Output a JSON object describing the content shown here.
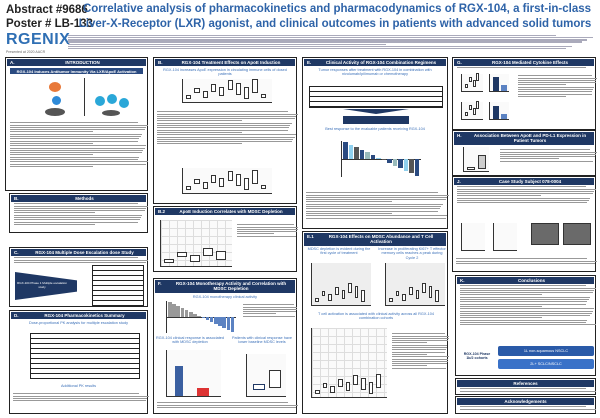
{
  "header": {
    "abstract": "Abstract #9686",
    "poster": "Poster # LB-133",
    "logo": "RGENIX",
    "presented": "Presented at 2020 AACR",
    "title_line1": "Correlative analysis of pharmacokinetics and pharmacodynamics of RGX-104, a first-in-class",
    "title_line2": "Liver-X-Receptor (LXR) agonist, and clinical outcomes in patients with advanced solid tumors"
  },
  "panels": {
    "intro": {
      "letter": "A.",
      "title": "INTRODUCTION",
      "subtitle": "RGX-104 Induces Antitumor Immunity Via LXR/ApoE Activation"
    },
    "methods": {
      "letter": "B.",
      "title": "Methods"
    },
    "dose": {
      "letter": "C.",
      "title": "RGX-104 Multiple Dose Escalation dose Study",
      "funnel": "RGX-104 Phase 1 Multiple escalation study"
    },
    "pk": {
      "letter": "D.",
      "title": "RGX-104 Pharmacokinetics Summary",
      "subtitle": "Dose-proportional PK analysis for multiple escalation study",
      "additional": "Additional PK results"
    },
    "apoe": {
      "letter": "B.",
      "title": "RGX-104 Treatment Effects on ApoE Induction",
      "subtitle": "RGX-104 increases ApoE expression in circulating immune cells of dosed patients"
    },
    "apoe_mdsc": {
      "letter": "B.2",
      "title": "ApoE Induction Correlates with MDSC Depletion"
    },
    "mono": {
      "letter": "F.",
      "title": "RGX-104 Monotherapy Activity and Correlation with MDSC Depletion",
      "subtitle": "RGX-104 monotherapy clinical activity",
      "left_sub": "RGX-104 clinical response is associated with MDSC depletion",
      "right_sub": "Patients with clinical response have lower baseline MDSC levels"
    },
    "clinical": {
      "letter": "E.",
      "title": "Clinical Activity of RGX-104 Combination Regimens",
      "subtitle": "Tumor responses after treatment with RGX-104 in combination with nivolumab/ipilimumab or chemotherapy",
      "chart_title": "Best response to the evaluable patients receiving RGX-104"
    },
    "tcell": {
      "letter": "E.1",
      "title": "RGX-104 Effects on MDSC Abundance and T Cell Activation",
      "sub1": "MDSC depletion is evident during the first cycle of treatment",
      "sub2": "Increase in proliferating KI67+ T effector memory cells reaches a peak during Cycle 2",
      "sub3": "T cell activation is associated with clinical activity across all RGX-104 combination cohorts"
    },
    "cytokine": {
      "letter": "G.",
      "title": "RGX-104 Mediated Cytokine Effects"
    },
    "pdl1": {
      "letter": "H.",
      "title": "Association Between ApoE and PD-L1 Expression in Patient Tumors"
    },
    "case": {
      "letter": "J.",
      "title": "Case Study Subject 078-0004"
    },
    "conclusions": {
      "letter": "K.",
      "title": "Conclusions",
      "cohorts": "RGX-104 Phase 1b/2 cohorts",
      "cohort1": "1L non-squamous NSCLC",
      "cohort2": "2L+ SCLC/NSCLC"
    },
    "references": {
      "title": "References"
    },
    "ack": {
      "title": "Acknowledgements"
    }
  },
  "colors": {
    "navy": "#1f3864",
    "title_blue": "#2e63a8",
    "logo_blue": "#2f6fb4"
  }
}
